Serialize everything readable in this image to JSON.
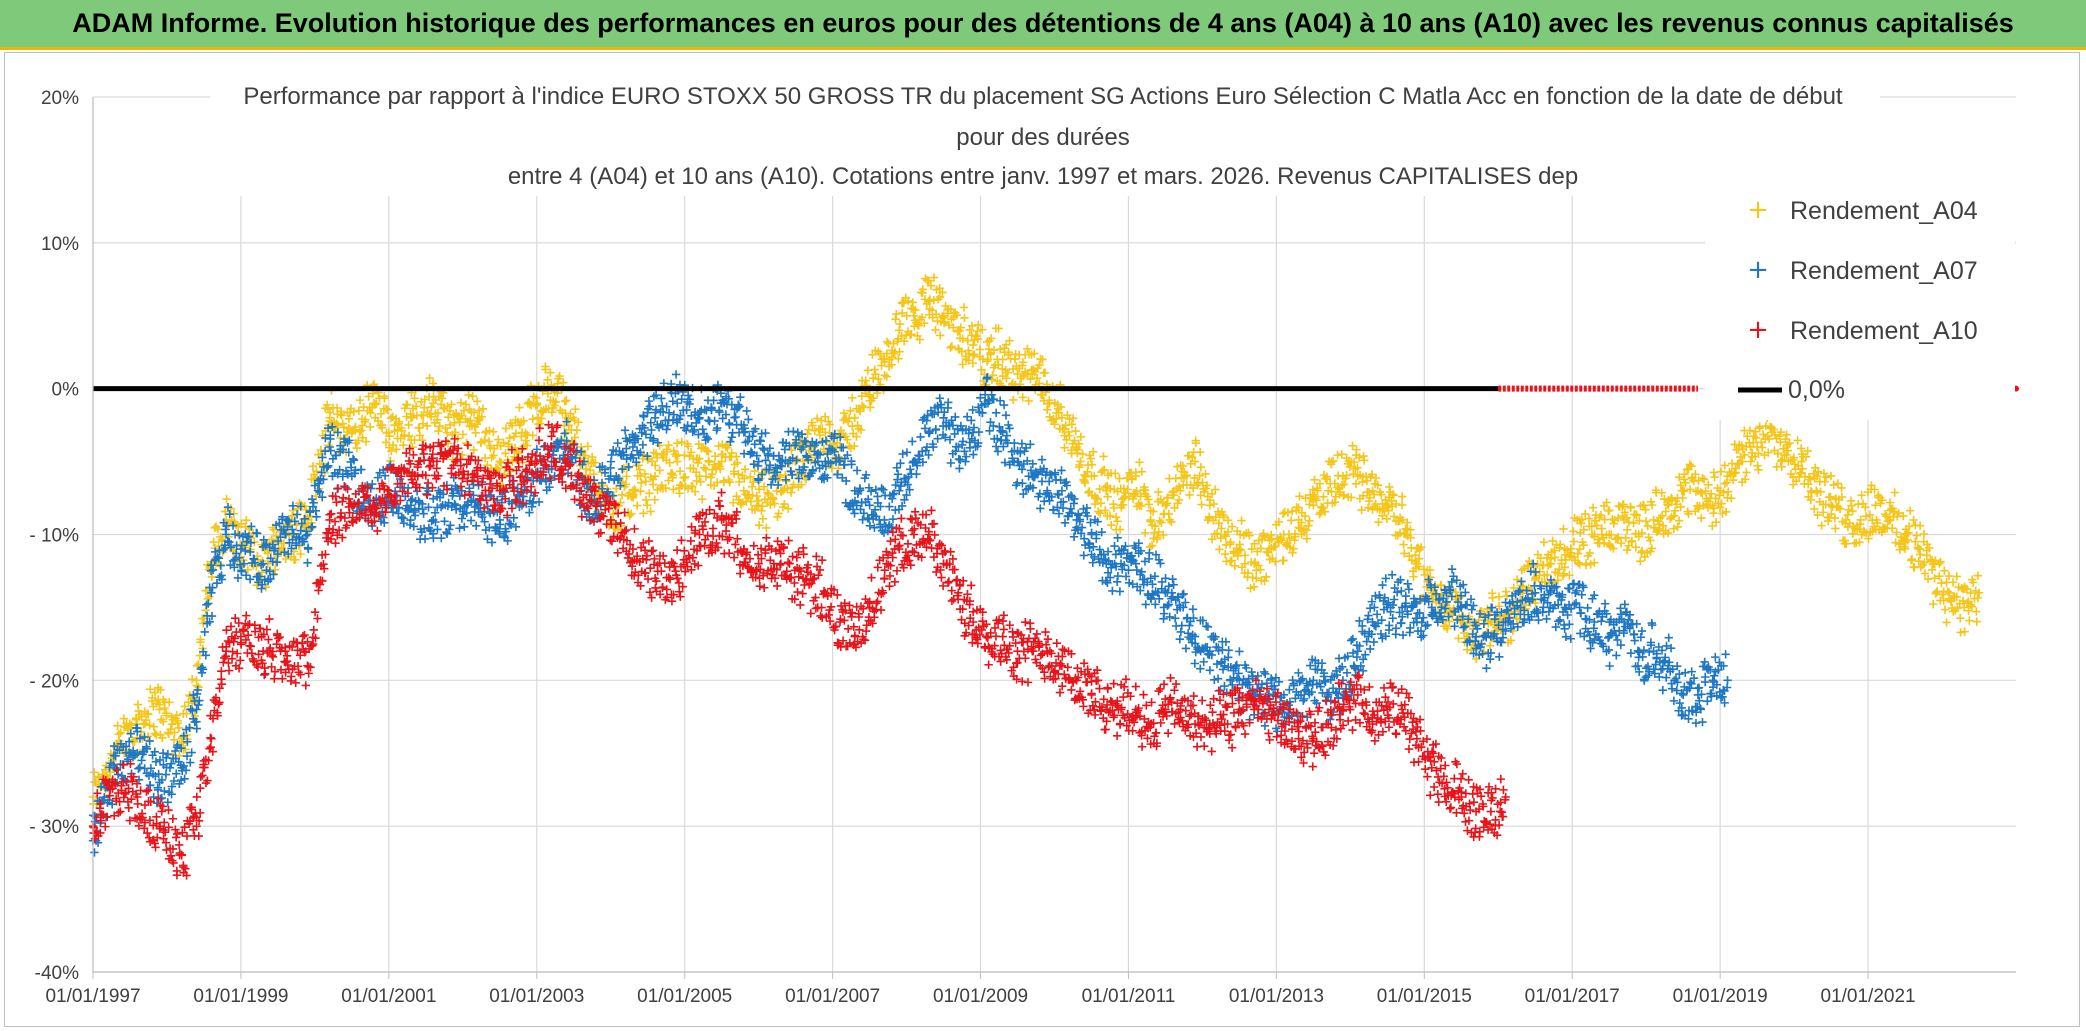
{
  "banner": {
    "text": "ADAM Informe. Evolution historique des performances en euros pour des détentions de 4 ans (A04) à 10 ans (A10) avec les revenus connus capitalisés"
  },
  "chart_data": {
    "type": "scatter",
    "title_lines": [
      "Performance par rapport à l'indice EURO STOXX 50 GROSS TR  du placement SG Actions Euro Sélection C Matla Acc en fonction de la date de début",
      "pour des durées",
      "entre 4 (A04) et 10 ans (A10). Cotations entre janv. 1997 et mars. 2026. Revenus CAPITALISES dep"
    ],
    "xlabel": "",
    "ylabel": "",
    "xlim": [
      1997.0,
      2023.0
    ],
    "ylim": [
      -40,
      20
    ],
    "x_tick_labels": [
      "01/01/1997",
      "01/01/1999",
      "01/01/2001",
      "01/01/2003",
      "01/01/2005",
      "01/01/2007",
      "01/01/2009",
      "01/01/2011",
      "01/01/2013",
      "01/01/2015",
      "01/01/2017",
      "01/01/2019",
      "01/01/2021"
    ],
    "y_tick_labels": [
      "20%",
      "10%",
      "0%",
      "- 10%",
      "- 20%",
      "- 30%",
      "-40%"
    ],
    "legend_position": "top-right",
    "series": [
      {
        "name": "Rendement_A04",
        "color": "#f5c518",
        "marker": "+",
        "x": [
          1997.0,
          1997.3,
          1997.6,
          1997.9,
          1998.2,
          1998.4,
          1998.6,
          1998.8,
          1999.0,
          1999.3,
          1999.6,
          1999.9,
          2000.2,
          2000.5,
          2000.8,
          2001.0,
          2001.3,
          2001.6,
          2001.9,
          2002.2,
          2002.5,
          2002.8,
          2003.0,
          2003.2,
          2003.4,
          2003.6,
          2003.8,
          2004.0,
          2004.3,
          2004.6,
          2004.9,
          2005.2,
          2005.5,
          2005.8,
          2006.0,
          2006.3,
          2006.6,
          2006.9,
          2007.1,
          2007.3,
          2007.5,
          2007.7,
          2007.9,
          2008.1,
          2008.3,
          2008.5,
          2008.7,
          2008.9,
          2009.1,
          2009.3,
          2009.5,
          2009.7,
          2009.9,
          2010.1,
          2010.3,
          2010.5,
          2010.7,
          2010.9,
          2011.1,
          2011.3,
          2011.5,
          2011.7,
          2011.9,
          2012.1,
          2012.3,
          2012.5,
          2012.7,
          2012.9,
          2013.1,
          2013.3,
          2013.5,
          2013.7,
          2013.9,
          2014.1,
          2014.3,
          2014.5,
          2014.7,
          2014.9,
          2015.1,
          2015.3,
          2015.5,
          2015.7,
          2015.9,
          2016.1,
          2016.3,
          2016.5,
          2016.7,
          2016.9,
          2017.1,
          2017.3,
          2017.5,
          2017.7,
          2017.9,
          2018.1,
          2018.3,
          2018.5,
          2018.7,
          2018.9,
          2019.1,
          2019.3,
          2019.5,
          2019.7,
          2019.9,
          2020.1,
          2020.3,
          2020.5,
          2020.7,
          2020.9,
          2021.1,
          2021.3,
          2021.5,
          2021.7,
          2021.9,
          2022.1,
          2022.3,
          2022.5
        ],
        "y": [
          -28,
          -25,
          -23,
          -22,
          -24,
          -20,
          -12,
          -9,
          -11,
          -12,
          -10,
          -9,
          -2,
          -3,
          -1,
          -3,
          -2,
          -1,
          -3,
          -2,
          -5,
          -3,
          -1,
          0,
          -2,
          -4,
          -7,
          -8,
          -7,
          -6,
          -5,
          -6,
          -5,
          -7,
          -8,
          -7,
          -5,
          -3,
          -4,
          -2,
          0,
          2,
          4,
          5,
          6,
          5,
          4,
          3,
          2,
          2,
          1,
          1,
          0,
          -2,
          -4,
          -6,
          -7,
          -8,
          -6,
          -9,
          -8,
          -7,
          -5,
          -8,
          -10,
          -11,
          -12,
          -11,
          -10,
          -9,
          -8,
          -7,
          -6,
          -6,
          -7,
          -8,
          -9,
          -12,
          -14,
          -15,
          -16,
          -17,
          -16,
          -16,
          -14,
          -13,
          -12,
          -11,
          -11,
          -10,
          -10,
          -9,
          -10,
          -9,
          -8,
          -7,
          -7,
          -8,
          -6,
          -5,
          -4,
          -3,
          -4,
          -5,
          -7,
          -8,
          -9,
          -9,
          -8,
          -9,
          -10,
          -11,
          -13,
          -14,
          -15,
          -14
        ]
      },
      {
        "name": "Rendement_A07",
        "color": "#1f77c4",
        "marker": "+",
        "x": [
          1997.0,
          1997.3,
          1997.6,
          1997.9,
          1998.2,
          1998.4,
          1998.6,
          1998.8,
          1999.0,
          1999.3,
          1999.6,
          1999.9,
          2000.2,
          2000.5,
          2000.8,
          2001.0,
          2001.3,
          2001.6,
          2001.9,
          2002.2,
          2002.5,
          2002.8,
          2003.0,
          2003.2,
          2003.4,
          2003.6,
          2003.8,
          2004.0,
          2004.3,
          2004.6,
          2004.9,
          2005.2,
          2005.5,
          2005.8,
          2006.0,
          2006.3,
          2006.6,
          2006.9,
          2007.1,
          2007.3,
          2007.5,
          2007.7,
          2007.9,
          2008.1,
          2008.3,
          2008.5,
          2008.7,
          2008.9,
          2009.1,
          2009.3,
          2009.5,
          2009.7,
          2009.9,
          2010.1,
          2010.3,
          2010.5,
          2010.7,
          2010.9,
          2011.1,
          2011.3,
          2011.5,
          2011.7,
          2011.9,
          2012.1,
          2012.3,
          2012.5,
          2012.7,
          2012.9,
          2013.1,
          2013.3,
          2013.5,
          2013.7,
          2013.9,
          2014.1,
          2014.3,
          2014.5,
          2014.7,
          2014.9,
          2015.1,
          2015.3,
          2015.5,
          2015.7,
          2015.9,
          2016.1,
          2016.3,
          2016.5,
          2016.7,
          2016.9,
          2017.1,
          2017.3,
          2017.5,
          2017.7,
          2017.9,
          2018.1,
          2018.3,
          2018.5,
          2018.7,
          2018.9,
          2019.1
        ],
        "y": [
          -31,
          -26,
          -25,
          -27,
          -26,
          -22,
          -14,
          -10,
          -11,
          -12,
          -10,
          -10,
          -4,
          -6,
          -8,
          -7,
          -8,
          -9,
          -8,
          -8,
          -9,
          -8,
          -6,
          -5,
          -4,
          -6,
          -8,
          -6,
          -4,
          -2,
          -1,
          -2,
          -1,
          -3,
          -5,
          -5,
          -4,
          -5,
          -5,
          -7,
          -8,
          -9,
          -7,
          -5,
          -3,
          -2,
          -4,
          -3,
          -1,
          -3,
          -5,
          -6,
          -7,
          -7,
          -9,
          -10,
          -12,
          -12,
          -12,
          -13,
          -14,
          -15,
          -17,
          -18,
          -19,
          -20,
          -21,
          -21,
          -22,
          -21,
          -20,
          -21,
          -20,
          -18,
          -16,
          -15,
          -15,
          -16,
          -15,
          -14,
          -15,
          -17,
          -17,
          -16,
          -15,
          -14,
          -15,
          -15,
          -15,
          -16,
          -17,
          -16,
          -18,
          -18,
          -19,
          -21,
          -21,
          -20,
          -20
        ]
      },
      {
        "name": "Rendement_A10",
        "color": "#e8141a",
        "marker": "+",
        "x": [
          1997.0,
          1997.3,
          1997.6,
          1997.9,
          1998.2,
          1998.4,
          1998.6,
          1998.8,
          1999.0,
          1999.3,
          1999.6,
          1999.9,
          2000.2,
          2000.5,
          2000.8,
          2001.0,
          2001.3,
          2001.6,
          2001.9,
          2002.2,
          2002.5,
          2002.8,
          2003.0,
          2003.2,
          2003.4,
          2003.6,
          2003.8,
          2004.0,
          2004.3,
          2004.6,
          2004.9,
          2005.2,
          2005.5,
          2005.8,
          2006.0,
          2006.3,
          2006.6,
          2006.9,
          2007.1,
          2007.3,
          2007.5,
          2007.7,
          2007.9,
          2008.1,
          2008.3,
          2008.5,
          2008.7,
          2008.9,
          2009.1,
          2009.3,
          2009.5,
          2009.7,
          2009.9,
          2010.1,
          2010.3,
          2010.5,
          2010.7,
          2010.9,
          2011.1,
          2011.3,
          2011.5,
          2011.7,
          2011.9,
          2012.1,
          2012.3,
          2012.5,
          2012.7,
          2012.9,
          2013.1,
          2013.3,
          2013.5,
          2013.7,
          2013.9,
          2014.1,
          2014.3,
          2014.5,
          2014.7,
          2014.9,
          2015.1,
          2015.3,
          2015.5,
          2015.7,
          2015.9,
          2016.1
        ],
        "y": [
          -30,
          -27,
          -28,
          -30,
          -32,
          -30,
          -24,
          -18,
          -17,
          -18,
          -18,
          -19,
          -9,
          -8,
          -8,
          -7,
          -6,
          -5,
          -5,
          -6,
          -7,
          -6,
          -5,
          -4,
          -5,
          -7,
          -8,
          -9,
          -11,
          -13,
          -13,
          -10,
          -9,
          -11,
          -12,
          -12,
          -13,
          -14,
          -16,
          -17,
          -15,
          -13,
          -11,
          -10,
          -10,
          -12,
          -14,
          -16,
          -17,
          -17,
          -18,
          -18,
          -18,
          -19,
          -20,
          -21,
          -22,
          -22,
          -22,
          -23,
          -22,
          -22,
          -23,
          -23,
          -23,
          -22,
          -22,
          -22,
          -23,
          -24,
          -24,
          -23,
          -22,
          -21,
          -23,
          -22,
          -22,
          -24,
          -26,
          -27,
          -28,
          -29,
          -29,
          -28
        ]
      },
      {
        "name": "0,0%",
        "color": "#000000",
        "marker": "line",
        "x": [
          1997.0,
          2016.0
        ],
        "y": [
          0,
          0
        ]
      }
    ],
    "zero_red_segment": {
      "x": [
        2016.0,
        2018.7
      ],
      "y": [
        0,
        0
      ],
      "color": "#e8141a"
    },
    "legend": [
      "Rendement_A04",
      "Rendement_A07",
      "Rendement_A10",
      "0,0%"
    ]
  }
}
